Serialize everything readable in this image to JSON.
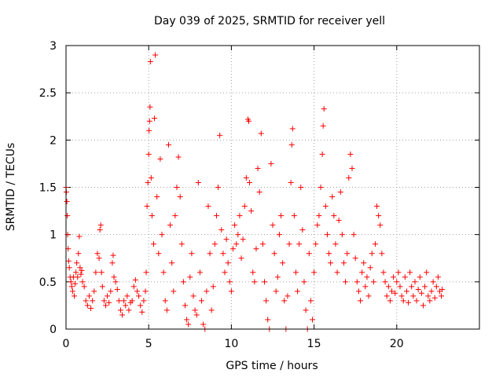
{
  "chart_data": {
    "type": "scatter",
    "title": "Day 039 of 2025, SRMTID for receiver yell",
    "xlabel": "GPS time / hours",
    "ylabel": "SRMTID / TECUs",
    "xlim": [
      0,
      25
    ],
    "ylim": [
      0,
      3
    ],
    "xticks": [
      0,
      5,
      10,
      15,
      20
    ],
    "xtick_labels": [
      "0",
      "5",
      "10",
      "15",
      "20"
    ],
    "yticks": [
      0,
      0.5,
      1,
      1.5,
      2,
      2.5,
      3
    ],
    "ytick_labels": [
      "0",
      "0.5",
      "1",
      "1.5",
      "2",
      "2.5",
      "3"
    ],
    "grid": true,
    "marker": "+",
    "color": "#ff0000",
    "series": [
      {
        "name": "SRMTID",
        "points": [
          [
            0.0,
            1.5
          ],
          [
            0.02,
            1.45
          ],
          [
            0.05,
            1.35
          ],
          [
            0.08,
            1.2
          ],
          [
            0.1,
            1.0
          ],
          [
            0.13,
            0.85
          ],
          [
            0.16,
            0.72
          ],
          [
            0.2,
            0.65
          ],
          [
            0.25,
            0.55
          ],
          [
            0.3,
            0.5
          ],
          [
            0.35,
            0.45
          ],
          [
            0.4,
            0.4
          ],
          [
            0.45,
            0.55
          ],
          [
            0.5,
            0.35
          ],
          [
            0.55,
            0.48
          ],
          [
            0.6,
            0.6
          ],
          [
            0.65,
            0.7
          ],
          [
            0.7,
            0.55
          ],
          [
            0.75,
            0.8
          ],
          [
            0.8,
            0.98
          ],
          [
            0.85,
            0.65
          ],
          [
            0.9,
            0.58
          ],
          [
            0.95,
            0.62
          ],
          [
            1.0,
            0.5
          ],
          [
            1.1,
            0.45
          ],
          [
            1.2,
            0.3
          ],
          [
            1.3,
            0.25
          ],
          [
            1.4,
            0.35
          ],
          [
            1.5,
            0.22
          ],
          [
            1.6,
            0.3
          ],
          [
            1.7,
            0.4
          ],
          [
            1.8,
            0.6
          ],
          [
            1.9,
            0.8
          ],
          [
            2.0,
            0.75
          ],
          [
            2.05,
            1.05
          ],
          [
            2.1,
            1.1
          ],
          [
            2.15,
            0.6
          ],
          [
            2.2,
            0.45
          ],
          [
            2.3,
            0.3
          ],
          [
            2.4,
            0.25
          ],
          [
            2.5,
            0.35
          ],
          [
            2.6,
            0.28
          ],
          [
            2.7,
            0.4
          ],
          [
            2.8,
            0.7
          ],
          [
            2.85,
            0.78
          ],
          [
            2.9,
            0.55
          ],
          [
            3.0,
            0.5
          ],
          [
            3.1,
            0.42
          ],
          [
            3.2,
            0.3
          ],
          [
            3.3,
            0.2
          ],
          [
            3.4,
            0.15
          ],
          [
            3.5,
            0.3
          ],
          [
            3.6,
            0.25
          ],
          [
            3.7,
            0.35
          ],
          [
            3.8,
            0.2
          ],
          [
            3.9,
            0.28
          ],
          [
            4.0,
            0.3
          ],
          [
            4.1,
            0.45
          ],
          [
            4.2,
            0.52
          ],
          [
            4.3,
            0.4
          ],
          [
            4.4,
            0.35
          ],
          [
            4.5,
            0.25
          ],
          [
            4.6,
            0.18
          ],
          [
            4.7,
            0.3
          ],
          [
            4.8,
            0.4
          ],
          [
            4.85,
            0.6
          ],
          [
            4.9,
            1.3
          ],
          [
            4.95,
            1.55
          ],
          [
            5.0,
            1.85
          ],
          [
            5.02,
            2.1
          ],
          [
            5.05,
            2.2
          ],
          [
            5.08,
            2.35
          ],
          [
            5.1,
            2.83
          ],
          [
            5.15,
            1.6
          ],
          [
            5.2,
            1.2
          ],
          [
            5.3,
            0.9
          ],
          [
            5.35,
            2.23
          ],
          [
            5.4,
            2.9
          ],
          [
            5.5,
            1.4
          ],
          [
            5.6,
            0.8
          ],
          [
            5.7,
            1.8
          ],
          [
            5.8,
            1.0
          ],
          [
            5.9,
            0.6
          ],
          [
            6.0,
            0.3
          ],
          [
            6.1,
            0.2
          ],
          [
            6.2,
            1.95
          ],
          [
            6.3,
            1.1
          ],
          [
            6.4,
            0.7
          ],
          [
            6.5,
            0.4
          ],
          [
            6.6,
            1.2
          ],
          [
            6.7,
            1.5
          ],
          [
            6.8,
            1.82
          ],
          [
            6.9,
            1.4
          ],
          [
            7.0,
            0.9
          ],
          [
            7.1,
            0.5
          ],
          [
            7.2,
            0.25
          ],
          [
            7.3,
            0.1
          ],
          [
            7.4,
            0.05
          ],
          [
            7.5,
            0.55
          ],
          [
            7.6,
            0.8
          ],
          [
            7.7,
            0.35
          ],
          [
            7.8,
            0.2
          ],
          [
            7.9,
            0.15
          ],
          [
            8.0,
            1.55
          ],
          [
            8.1,
            0.6
          ],
          [
            8.2,
            0.3
          ],
          [
            8.3,
            0.05
          ],
          [
            8.4,
            0.0
          ],
          [
            8.5,
            0.4
          ],
          [
            8.6,
            1.3
          ],
          [
            8.7,
            0.8
          ],
          [
            8.8,
            0.2
          ],
          [
            8.9,
            0.45
          ],
          [
            9.0,
            0.9
          ],
          [
            9.1,
            1.2
          ],
          [
            9.2,
            1.5
          ],
          [
            9.3,
            2.05
          ],
          [
            9.4,
            1.05
          ],
          [
            9.5,
            0.8
          ],
          [
            9.6,
            0.6
          ],
          [
            9.7,
            0.95
          ],
          [
            9.8,
            0.7
          ],
          [
            9.9,
            0.5
          ],
          [
            10.0,
            0.4
          ],
          [
            10.1,
            0.85
          ],
          [
            10.2,
            1.1
          ],
          [
            10.3,
            0.9
          ],
          [
            10.4,
            1.0
          ],
          [
            10.5,
            1.2
          ],
          [
            10.6,
            0.75
          ],
          [
            10.7,
            0.95
          ],
          [
            10.8,
            1.3
          ],
          [
            10.9,
            1.6
          ],
          [
            11.0,
            2.22
          ],
          [
            11.05,
            2.2
          ],
          [
            11.1,
            1.55
          ],
          [
            11.2,
            1.25
          ],
          [
            11.3,
            0.6
          ],
          [
            11.4,
            0.5
          ],
          [
            11.5,
            0.85
          ],
          [
            11.6,
            1.7
          ],
          [
            11.7,
            1.45
          ],
          [
            11.8,
            2.07
          ],
          [
            11.9,
            0.9
          ],
          [
            12.0,
            0.5
          ],
          [
            12.1,
            0.3
          ],
          [
            12.2,
            0.1
          ],
          [
            12.3,
            0.0
          ],
          [
            12.4,
            1.75
          ],
          [
            12.5,
            1.1
          ],
          [
            12.6,
            0.8
          ],
          [
            12.7,
            0.4
          ],
          [
            12.8,
            0.55
          ],
          [
            12.9,
            1.0
          ],
          [
            13.0,
            1.2
          ],
          [
            13.1,
            0.7
          ],
          [
            13.2,
            0.3
          ],
          [
            13.3,
            0.0
          ],
          [
            13.4,
            0.35
          ],
          [
            13.5,
            0.9
          ],
          [
            13.6,
            1.55
          ],
          [
            13.65,
            1.95
          ],
          [
            13.7,
            2.12
          ],
          [
            13.8,
            1.2
          ],
          [
            13.9,
            0.6
          ],
          [
            14.0,
            0.4
          ],
          [
            14.1,
            0.9
          ],
          [
            14.2,
            1.5
          ],
          [
            14.3,
            1.05
          ],
          [
            14.4,
            0.5
          ],
          [
            14.5,
            0.2
          ],
          [
            14.6,
            0.0
          ],
          [
            14.7,
            0.8
          ],
          [
            14.8,
            0.3
          ],
          [
            14.9,
            0.1
          ],
          [
            15.0,
            0.6
          ],
          [
            15.1,
            0.9
          ],
          [
            15.2,
            1.1
          ],
          [
            15.3,
            1.2
          ],
          [
            15.4,
            1.5
          ],
          [
            15.5,
            1.85
          ],
          [
            15.55,
            2.15
          ],
          [
            15.6,
            2.33
          ],
          [
            15.7,
            1.3
          ],
          [
            15.8,
            1.0
          ],
          [
            15.9,
            0.8
          ],
          [
            16.0,
            0.7
          ],
          [
            16.1,
            1.4
          ],
          [
            16.2,
            1.2
          ],
          [
            16.3,
            0.9
          ],
          [
            16.4,
            0.6
          ],
          [
            16.5,
            1.15
          ],
          [
            16.6,
            1.45
          ],
          [
            16.7,
            1.0
          ],
          [
            16.8,
            0.7
          ],
          [
            16.9,
            0.5
          ],
          [
            17.0,
            0.8
          ],
          [
            17.1,
            1.6
          ],
          [
            17.2,
            1.85
          ],
          [
            17.3,
            1.7
          ],
          [
            17.4,
            1.0
          ],
          [
            17.5,
            0.75
          ],
          [
            17.6,
            0.5
          ],
          [
            17.7,
            0.4
          ],
          [
            17.8,
            0.3
          ],
          [
            17.9,
            0.6
          ],
          [
            18.0,
            0.7
          ],
          [
            18.1,
            0.45
          ],
          [
            18.2,
            0.55
          ],
          [
            18.3,
            0.35
          ],
          [
            18.4,
            0.65
          ],
          [
            18.5,
            0.8
          ],
          [
            18.6,
            0.5
          ],
          [
            18.7,
            0.9
          ],
          [
            18.8,
            1.3
          ],
          [
            18.9,
            1.2
          ],
          [
            19.0,
            1.1
          ],
          [
            19.1,
            0.8
          ],
          [
            19.2,
            0.6
          ],
          [
            19.3,
            0.5
          ],
          [
            19.4,
            0.35
          ],
          [
            19.5,
            0.45
          ],
          [
            19.6,
            0.3
          ],
          [
            19.7,
            0.4
          ],
          [
            19.8,
            0.55
          ],
          [
            19.9,
            0.38
          ],
          [
            20.0,
            0.5
          ],
          [
            20.1,
            0.6
          ],
          [
            20.2,
            0.45
          ],
          [
            20.3,
            0.35
          ],
          [
            20.4,
            0.3
          ],
          [
            20.5,
            0.55
          ],
          [
            20.6,
            0.4
          ],
          [
            20.7,
            0.28
          ],
          [
            20.8,
            0.6
          ],
          [
            20.9,
            0.45
          ],
          [
            21.0,
            0.35
          ],
          [
            21.1,
            0.5
          ],
          [
            21.2,
            0.3
          ],
          [
            21.3,
            0.42
          ],
          [
            21.4,
            0.55
          ],
          [
            21.5,
            0.38
          ],
          [
            21.6,
            0.25
          ],
          [
            21.7,
            0.45
          ],
          [
            21.8,
            0.6
          ],
          [
            21.9,
            0.35
          ],
          [
            22.0,
            0.3
          ],
          [
            22.1,
            0.4
          ],
          [
            22.2,
            0.5
          ],
          [
            22.3,
            0.33
          ],
          [
            22.4,
            0.45
          ],
          [
            22.5,
            0.55
          ],
          [
            22.6,
            0.4
          ],
          [
            22.7,
            0.35
          ],
          [
            22.75,
            0.42
          ]
        ]
      }
    ]
  }
}
